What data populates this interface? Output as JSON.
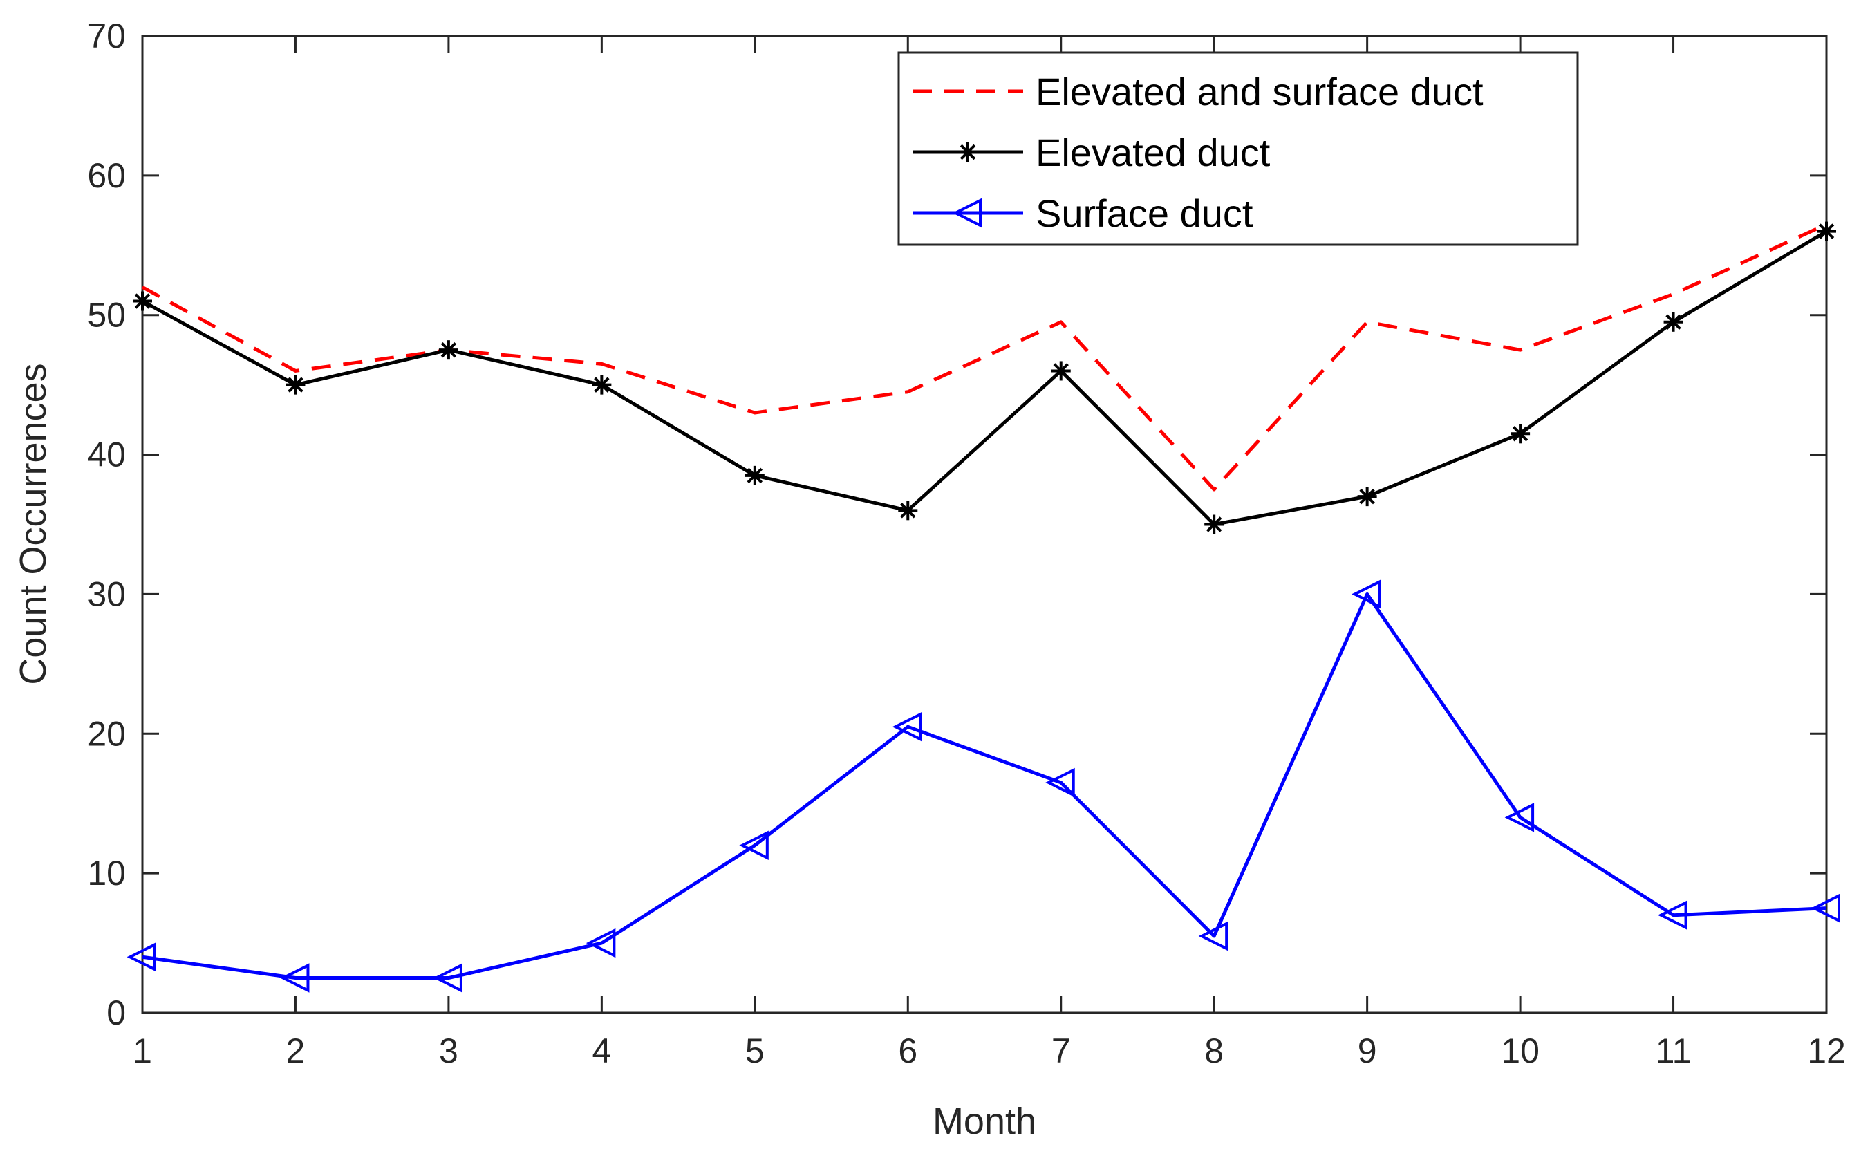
{
  "chart_data": {
    "type": "line",
    "title": "",
    "xlabel": "Month",
    "ylabel": "Count Occurrences",
    "xlim": [
      1,
      12
    ],
    "ylim": [
      0,
      70
    ],
    "x": [
      1,
      2,
      3,
      4,
      5,
      6,
      7,
      8,
      9,
      10,
      11,
      12
    ],
    "xticks": [
      "1",
      "2",
      "3",
      "4",
      "5",
      "6",
      "7",
      "8",
      "9",
      "10",
      "11",
      "12"
    ],
    "yticks": [
      "0",
      "10",
      "20",
      "30",
      "40",
      "50",
      "60",
      "70"
    ],
    "grid": false,
    "legend_position": "top-right",
    "series": [
      {
        "name": "Elevated and surface duct",
        "color": "#ff0000",
        "line_style": "dashed",
        "marker": "none",
        "values": [
          52,
          46,
          47.5,
          46.5,
          43,
          44.5,
          49.5,
          37.5,
          49.5,
          47.5,
          51.5,
          56.5
        ]
      },
      {
        "name": "Elevated duct",
        "color": "#000000",
        "line_style": "solid",
        "marker": "asterisk",
        "values": [
          51,
          45,
          47.5,
          45,
          38.5,
          36,
          46,
          35,
          37,
          41.5,
          49.5,
          56
        ]
      },
      {
        "name": "Surface duct",
        "color": "#0000ff",
        "line_style": "solid",
        "marker": "left-triangle",
        "values": [
          4,
          2.5,
          2.5,
          5,
          12,
          20.5,
          16.5,
          5.5,
          30,
          14,
          7,
          7.5
        ]
      }
    ]
  }
}
